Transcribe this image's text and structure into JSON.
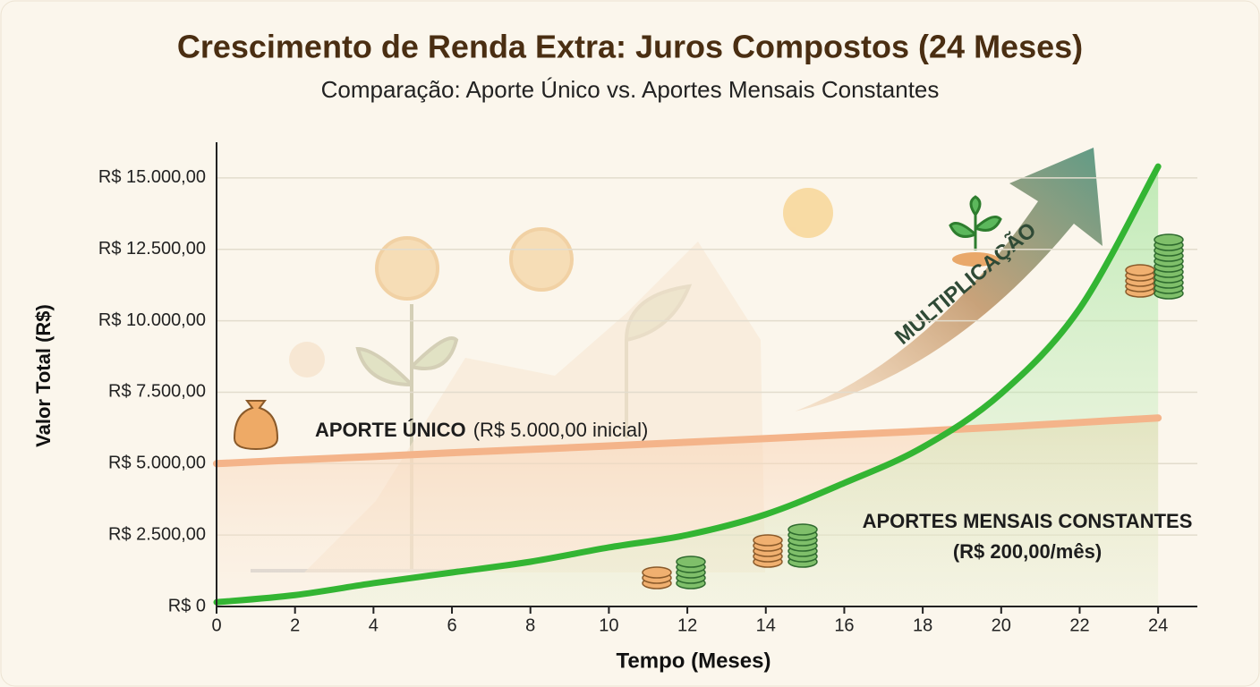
{
  "chart_data": {
    "type": "line",
    "title": "Crescimento de Renda Extra: Juros Compostos (24 Meses)",
    "subtitle": "Comparação: Aporte Único vs. Aportes Mensais Constantes",
    "y_label": "Valor Total (R$)",
    "x_label": "Tempo (Meses)",
    "x": [
      0,
      2,
      4,
      6,
      8,
      10,
      12,
      14,
      16,
      18,
      20,
      22,
      24
    ],
    "xlim": [
      0,
      25
    ],
    "xticks": [
      0,
      2,
      4,
      6,
      8,
      10,
      12,
      14,
      16,
      18,
      20,
      22,
      24
    ],
    "ylim": [
      0,
      16250
    ],
    "yticks": [
      {
        "value": 0,
        "label": "R$ 0"
      },
      {
        "value": 2500,
        "label": "R$ 2.500,00"
      },
      {
        "value": 5000,
        "label": "R$ 5.000,00"
      },
      {
        "value": 7500,
        "label": "R$ 7.500,00"
      },
      {
        "value": 10000,
        "label": "R$ 10.000,00"
      },
      {
        "value": 12500,
        "label": "R$ 12.500,00"
      },
      {
        "value": 15000,
        "label": "R$ 15.000,00"
      }
    ],
    "grid": true,
    "series": [
      {
        "name": "APORTE ÚNICO",
        "detail": "(R$ 5.000,00 inicial)",
        "color": "#f4b48a",
        "values": [
          5000,
          5130,
          5250,
          5380,
          5500,
          5620,
          5750,
          5880,
          6010,
          6140,
          6280,
          6440,
          6600
        ]
      },
      {
        "name": "APORTES MENSAIS CONSTANTES",
        "detail": "(R$ 200,00/mês)",
        "color": "#33b533",
        "values": [
          150,
          400,
          815,
          1190,
          1566,
          2067,
          2505,
          3225,
          4322,
          5575,
          7454,
          10430,
          15400
        ]
      }
    ],
    "annotation": "MULTIPLICAÇÃO"
  }
}
